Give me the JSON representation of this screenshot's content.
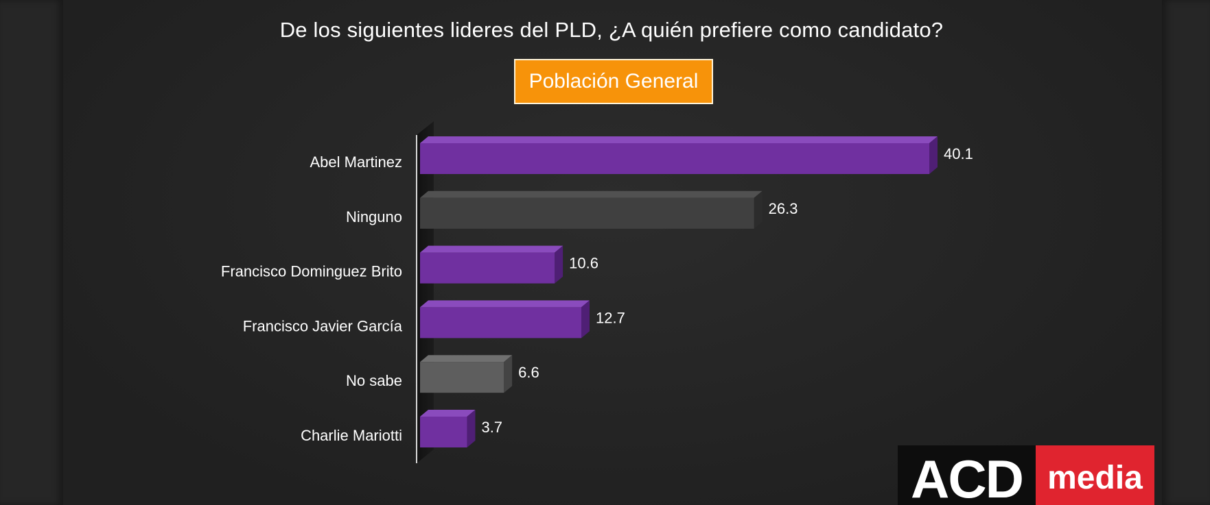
{
  "title": "De los siguientes lideres del PLD, ¿A quién prefiere como candidato?",
  "badge": "Población General",
  "logo": {
    "left": "ACD",
    "right": "media"
  },
  "colors": {
    "background": "#232323",
    "badge": "#f7930a",
    "purple": "#7030a0",
    "dark_gray": "#404040",
    "gray": "#5e5e5e",
    "logo_red": "#e0242f"
  },
  "chart_data": {
    "type": "bar",
    "orientation": "horizontal",
    "title": "De los siguientes lideres del PLD, ¿A quién prefiere como candidato?",
    "subtitle": "Población General",
    "categories": [
      "Abel Martinez",
      "Ninguno",
      "Francisco Dominguez Brito",
      "Francisco Javier García",
      "No sabe",
      "Charlie Mariotti"
    ],
    "values": [
      40.1,
      26.3,
      10.6,
      12.7,
      6.6,
      3.7
    ],
    "value_labels": [
      "40.1",
      "26.3",
      "10.6",
      "12.7",
      "6.6",
      "3.7"
    ],
    "bar_colors": [
      "purple",
      "dark_gray",
      "purple",
      "purple",
      "gray",
      "purple"
    ],
    "xlim": [
      0,
      40.1
    ],
    "grid": false,
    "legend": false,
    "style": "3d"
  }
}
